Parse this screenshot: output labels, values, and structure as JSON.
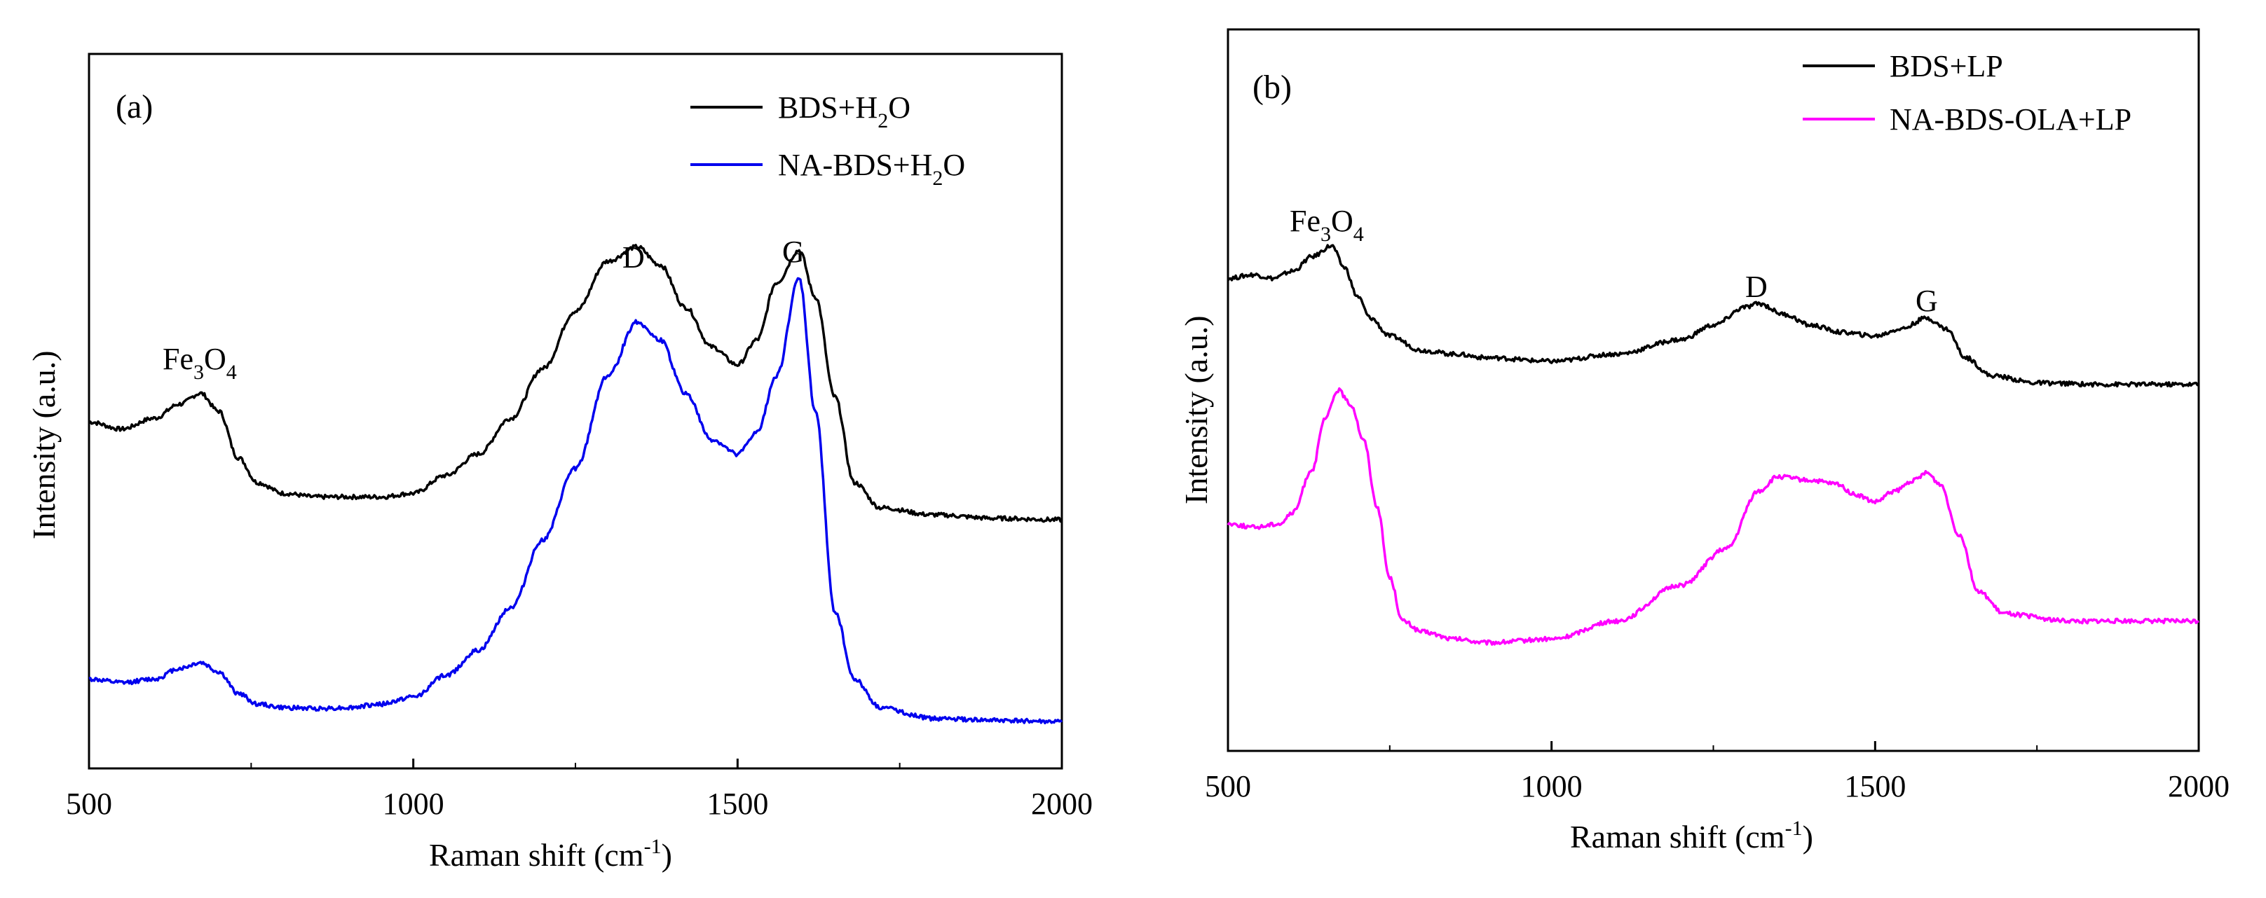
{
  "chart_data": [
    {
      "type": "line",
      "panel_label": "(a)",
      "xlabel": "Raman shift (cm-1)",
      "ylabel": "Intensity (a.u.)",
      "xlim": [
        500,
        2000
      ],
      "ylim": [
        0,
        1
      ],
      "xticks": [
        500,
        1000,
        1500,
        2000
      ],
      "legend_position": "top-right",
      "legend": [
        {
          "name": "BDS+H2O",
          "color": "#000000"
        },
        {
          "name": "NA-BDS+H2O",
          "color": "#0000ee"
        }
      ],
      "peak_labels": [
        {
          "text": "Fe3O4",
          "x": 672,
          "y": 0.6
        },
        {
          "text": "D",
          "x": 1345,
          "y": 0.745
        },
        {
          "text": "G",
          "x": 1595,
          "y": 0.745
        }
      ],
      "series": [
        {
          "name": "BDS+H2O",
          "color": "#000000",
          "x": [
            500,
            550,
            600,
            640,
            672,
            700,
            730,
            760,
            800,
            850,
            900,
            950,
            1000,
            1050,
            1100,
            1150,
            1200,
            1250,
            1300,
            1345,
            1380,
            1420,
            1460,
            1500,
            1530,
            1560,
            1595,
            1620,
            1650,
            1680,
            1720,
            1800,
            1900,
            2000
          ],
          "y": [
            0.485,
            0.475,
            0.49,
            0.51,
            0.525,
            0.5,
            0.435,
            0.4,
            0.385,
            0.38,
            0.38,
            0.38,
            0.385,
            0.41,
            0.44,
            0.49,
            0.56,
            0.64,
            0.71,
            0.73,
            0.705,
            0.645,
            0.59,
            0.565,
            0.6,
            0.68,
            0.725,
            0.66,
            0.52,
            0.4,
            0.365,
            0.355,
            0.35,
            0.348
          ]
        },
        {
          "name": "NA-BDS+H2O",
          "color": "#0000ee",
          "x": [
            500,
            550,
            600,
            640,
            672,
            700,
            730,
            760,
            800,
            850,
            900,
            950,
            1000,
            1050,
            1100,
            1150,
            1200,
            1250,
            1300,
            1345,
            1380,
            1420,
            1460,
            1500,
            1530,
            1560,
            1595,
            1620,
            1650,
            1680,
            1720,
            1800,
            1900,
            2000
          ],
          "y": [
            0.125,
            0.12,
            0.125,
            0.14,
            0.148,
            0.135,
            0.105,
            0.09,
            0.085,
            0.084,
            0.085,
            0.09,
            0.1,
            0.13,
            0.165,
            0.225,
            0.32,
            0.42,
            0.55,
            0.625,
            0.6,
            0.525,
            0.46,
            0.44,
            0.47,
            0.55,
            0.685,
            0.5,
            0.22,
            0.125,
            0.085,
            0.07,
            0.067,
            0.065
          ]
        }
      ]
    },
    {
      "type": "line",
      "panel_label": "(b)",
      "xlabel": "Raman shift (cm-1)",
      "ylabel": "Intensity (a.u.)",
      "xlim": [
        500,
        2000
      ],
      "ylim": [
        0,
        1
      ],
      "xticks": [
        500,
        1000,
        1500,
        2000
      ],
      "legend_position": "top-right",
      "legend": [
        {
          "name": "BDS+LP",
          "color": "#000000"
        },
        {
          "name": "NA-BDS-OLA+LP",
          "color": "#ff00ff"
        }
      ],
      "peak_labels": [
        {
          "text": "Fe3O4",
          "x": 660,
          "y": 0.755
        },
        {
          "text": "D",
          "x": 1320,
          "y": 0.665
        },
        {
          "text": "G",
          "x": 1580,
          "y": 0.655
        }
      ],
      "series": [
        {
          "name": "BDS+LP",
          "color": "#000000",
          "x": [
            500,
            540,
            570,
            600,
            630,
            660,
            680,
            700,
            720,
            750,
            800,
            850,
            900,
            1000,
            1100,
            1200,
            1250,
            1300,
            1320,
            1360,
            1400,
            1450,
            1500,
            1540,
            1580,
            1610,
            1640,
            1680,
            1750,
            1850,
            2000
          ],
          "y": [
            0.655,
            0.66,
            0.655,
            0.665,
            0.685,
            0.7,
            0.67,
            0.63,
            0.6,
            0.575,
            0.555,
            0.55,
            0.545,
            0.54,
            0.55,
            0.57,
            0.59,
            0.615,
            0.62,
            0.605,
            0.59,
            0.58,
            0.575,
            0.585,
            0.6,
            0.585,
            0.545,
            0.52,
            0.51,
            0.508,
            0.508
          ]
        },
        {
          "name": "NA-BDS-OLA+LP",
          "color": "#ff00ff",
          "x": [
            500,
            540,
            580,
            600,
            630,
            650,
            670,
            690,
            710,
            730,
            750,
            770,
            800,
            850,
            900,
            1000,
            1100,
            1200,
            1270,
            1320,
            1350,
            1400,
            1440,
            1470,
            1500,
            1530,
            1560,
            1580,
            1600,
            1630,
            1660,
            1700,
            1800,
            2000
          ],
          "y": [
            0.315,
            0.31,
            0.315,
            0.33,
            0.39,
            0.46,
            0.5,
            0.48,
            0.43,
            0.34,
            0.24,
            0.18,
            0.165,
            0.155,
            0.15,
            0.155,
            0.18,
            0.23,
            0.28,
            0.36,
            0.38,
            0.375,
            0.37,
            0.355,
            0.345,
            0.36,
            0.375,
            0.385,
            0.37,
            0.3,
            0.22,
            0.19,
            0.18,
            0.18
          ]
        }
      ]
    }
  ]
}
